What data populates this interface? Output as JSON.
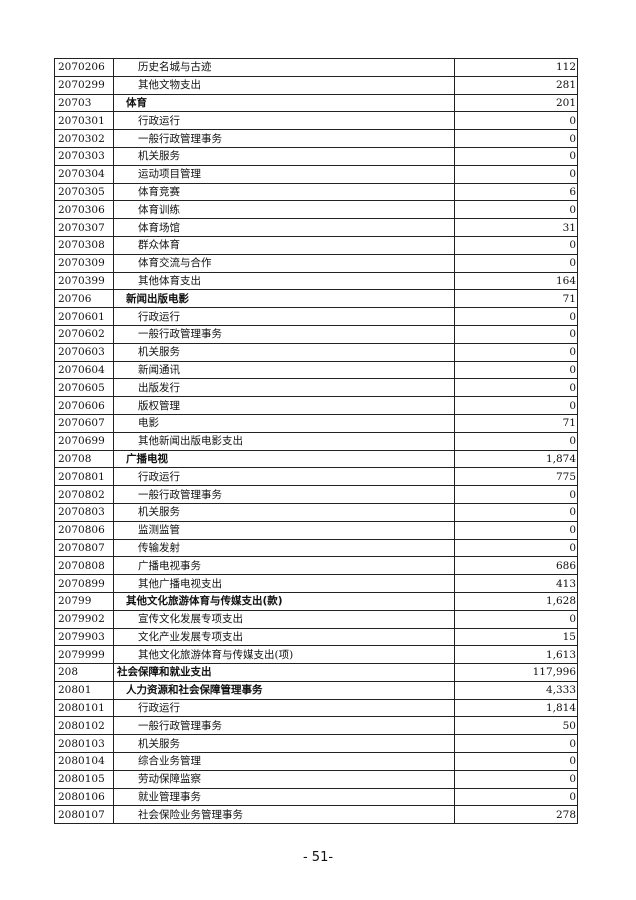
{
  "rows": [
    {
      "code": "2070206",
      "name": "历史名城与古迹",
      "value": "112",
      "level": 3
    },
    {
      "code": "2070299",
      "name": "其他文物支出",
      "value": "281",
      "level": 3
    },
    {
      "code": "20703",
      "name": "体育",
      "value": "201",
      "level": 2
    },
    {
      "code": "2070301",
      "name": "行政运行",
      "value": "0",
      "level": 3
    },
    {
      "code": "2070302",
      "name": "一般行政管理事务",
      "value": "0",
      "level": 3
    },
    {
      "code": "2070303",
      "name": "机关服务",
      "value": "0",
      "level": 3
    },
    {
      "code": "2070304",
      "name": "运动项目管理",
      "value": "0",
      "level": 3
    },
    {
      "code": "2070305",
      "name": "体育竞赛",
      "value": "6",
      "level": 3
    },
    {
      "code": "2070306",
      "name": "体育训练",
      "value": "0",
      "level": 3
    },
    {
      "code": "2070307",
      "name": "体育场馆",
      "value": "31",
      "level": 3
    },
    {
      "code": "2070308",
      "name": "群众体育",
      "value": "0",
      "level": 3
    },
    {
      "code": "2070309",
      "name": "体育交流与合作",
      "value": "0",
      "level": 3
    },
    {
      "code": "2070399",
      "name": "其他体育支出",
      "value": "164",
      "level": 3
    },
    {
      "code": "20706",
      "name": "新闻出版电影",
      "value": "71",
      "level": 2
    },
    {
      "code": "2070601",
      "name": "行政运行",
      "value": "0",
      "level": 3
    },
    {
      "code": "2070602",
      "name": "一般行政管理事务",
      "value": "0",
      "level": 3
    },
    {
      "code": "2070603",
      "name": "机关服务",
      "value": "0",
      "level": 3
    },
    {
      "code": "2070604",
      "name": "新闻通讯",
      "value": "0",
      "level": 3
    },
    {
      "code": "2070605",
      "name": "出版发行",
      "value": "0",
      "level": 3
    },
    {
      "code": "2070606",
      "name": "版权管理",
      "value": "0",
      "level": 3
    },
    {
      "code": "2070607",
      "name": "电影",
      "value": "71",
      "level": 3
    },
    {
      "code": "2070699",
      "name": "其他新闻出版电影支出",
      "value": "0",
      "level": 3
    },
    {
      "code": "20708",
      "name": "广播电视",
      "value": "1,874",
      "level": 2
    },
    {
      "code": "2070801",
      "name": "行政运行",
      "value": "775",
      "level": 3
    },
    {
      "code": "2070802",
      "name": "一般行政管理事务",
      "value": "0",
      "level": 3
    },
    {
      "code": "2070803",
      "name": "机关服务",
      "value": "0",
      "level": 3
    },
    {
      "code": "2070806",
      "name": "监测监管",
      "value": "0",
      "level": 3
    },
    {
      "code": "2070807",
      "name": "传输发射",
      "value": "0",
      "level": 3
    },
    {
      "code": "2070808",
      "name": "广播电视事务",
      "value": "686",
      "level": 3
    },
    {
      "code": "2070899",
      "name": "其他广播电视支出",
      "value": "413",
      "level": 3
    },
    {
      "code": "20799",
      "name": "其他文化旅游体育与传媒支出(款)",
      "value": "1,628",
      "level": 2
    },
    {
      "code": "2079902",
      "name": "宣传文化发展专项支出",
      "value": "0",
      "level": 3
    },
    {
      "code": "2079903",
      "name": "文化产业发展专项支出",
      "value": "15",
      "level": 3
    },
    {
      "code": "2079999",
      "name": "其他文化旅游体育与传媒支出(项)",
      "value": "1,613",
      "level": 3
    },
    {
      "code": "208",
      "name": "社会保障和就业支出",
      "value": "117,996",
      "level": 1
    },
    {
      "code": "20801",
      "name": "人力资源和社会保障管理事务",
      "value": "4,333",
      "level": 2
    },
    {
      "code": "2080101",
      "name": "行政运行",
      "value": "1,814",
      "level": 3
    },
    {
      "code": "2080102",
      "name": "一般行政管理事务",
      "value": "50",
      "level": 3
    },
    {
      "code": "2080103",
      "name": "机关服务",
      "value": "0",
      "level": 3
    },
    {
      "code": "2080104",
      "name": "综合业务管理",
      "value": "0",
      "level": 3
    },
    {
      "code": "2080105",
      "name": "劳动保障监察",
      "value": "0",
      "level": 3
    },
    {
      "code": "2080106",
      "name": "就业管理事务",
      "value": "0",
      "level": 3
    },
    {
      "code": "2080107",
      "name": "社会保险业务管理事务",
      "value": "278",
      "level": 3
    }
  ],
  "page_number": "- 51-"
}
